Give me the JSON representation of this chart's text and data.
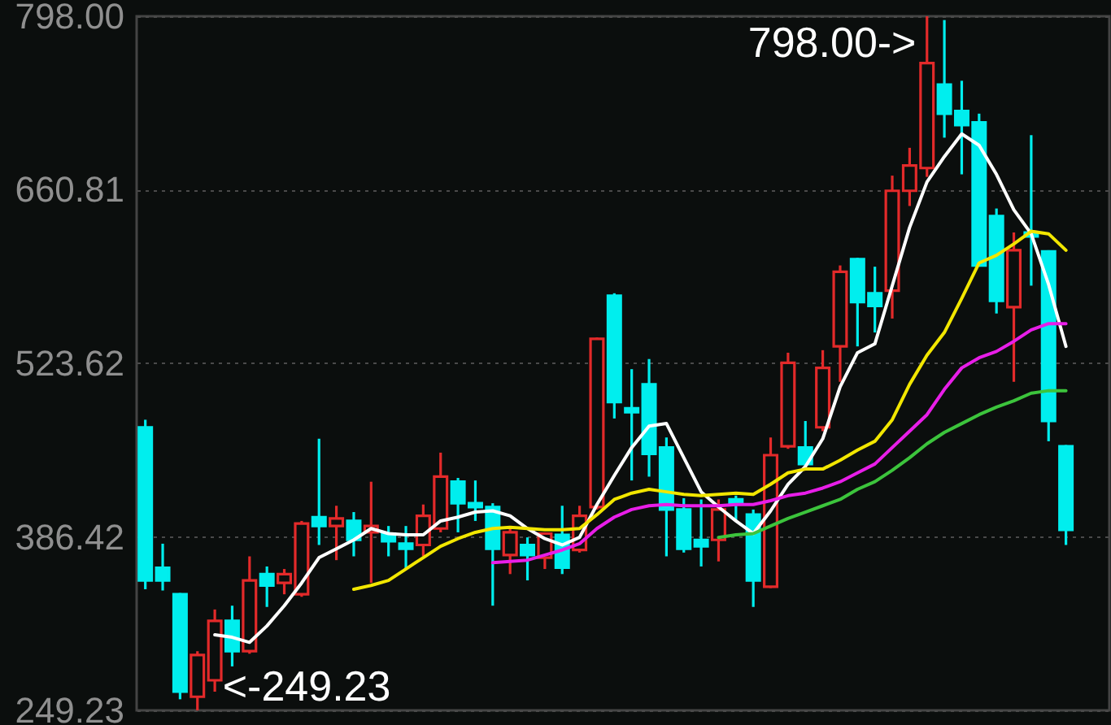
{
  "chart_data": {
    "type": "candlestick",
    "categories": [
      null,
      null,
      null,
      null,
      null,
      null,
      null,
      null,
      null,
      null,
      null,
      null,
      null,
      null,
      null,
      null,
      null,
      null,
      null,
      null,
      null,
      null,
      null,
      null,
      null,
      null,
      null,
      null,
      null,
      null,
      null,
      null,
      null,
      null,
      null,
      null,
      null,
      null,
      null,
      null,
      null,
      null,
      null,
      null,
      null,
      null,
      null,
      null,
      null,
      null,
      null,
      null,
      null,
      null
    ],
    "ohlc": [
      [
        473,
        479,
        345,
        352
      ],
      [
        362,
        381,
        344,
        352
      ],
      [
        341,
        342,
        258,
        264
      ],
      [
        260,
        296,
        249.23,
        293
      ],
      [
        273,
        329,
        264,
        320
      ],
      [
        320,
        332,
        284,
        296
      ],
      [
        296,
        371,
        294,
        352
      ],
      [
        357,
        363,
        331,
        348
      ],
      [
        350,
        361,
        341,
        357
      ],
      [
        341,
        399,
        339,
        397
      ],
      [
        402,
        464,
        380,
        395
      ],
      [
        395,
        411,
        368,
        401
      ],
      [
        399,
        406,
        371,
        384
      ],
      [
        390,
        430,
        350,
        395
      ],
      [
        389,
        395,
        371,
        383
      ],
      [
        381,
        395,
        361,
        377
      ],
      [
        380,
        412,
        371,
        403
      ],
      [
        393,
        453,
        390,
        434
      ],
      [
        430,
        433,
        390,
        413
      ],
      [
        413,
        431,
        399,
        410
      ],
      [
        410,
        413,
        332,
        377
      ],
      [
        372,
        393,
        357,
        390
      ],
      [
        380,
        386,
        352,
        372
      ],
      [
        370,
        390,
        361,
        389
      ],
      [
        388,
        411,
        357,
        362
      ],
      [
        376,
        411,
        374,
        403
      ],
      [
        410,
        544,
        408,
        543
      ],
      [
        577,
        579,
        480,
        493
      ],
      [
        488,
        519,
        431,
        485
      ],
      [
        507,
        527,
        434,
        452
      ],
      [
        457,
        465,
        371,
        408
      ],
      [
        408,
        417,
        374,
        377
      ],
      [
        384,
        416,
        363,
        379
      ],
      [
        384,
        416,
        367,
        408
      ],
      [
        416,
        419,
        399,
        413
      ],
      [
        404,
        408,
        331,
        352
      ],
      [
        347,
        465,
        346,
        451
      ],
      [
        458,
        532,
        456,
        524
      ],
      [
        457,
        478,
        443,
        444
      ],
      [
        473,
        534,
        470,
        520
      ],
      [
        537,
        601,
        509,
        596
      ],
      [
        606,
        607,
        537,
        572
      ],
      [
        579,
        600,
        548,
        569
      ],
      [
        581,
        672,
        559,
        660
      ],
      [
        660,
        694,
        648,
        680
      ],
      [
        678,
        798,
        671,
        761
      ],
      [
        744,
        795,
        702,
        721
      ],
      [
        723,
        747,
        673,
        712
      ],
      [
        714,
        721,
        600,
        601
      ],
      [
        640,
        646,
        563,
        573
      ],
      [
        568,
        627,
        509,
        613
      ],
      [
        627,
        704,
        585,
        624
      ],
      [
        612,
        613,
        462,
        478
      ],
      [
        458,
        459,
        380,
        392
      ]
    ],
    "colors": [
      "#00eeee",
      "#00eeee",
      "#00eeee",
      "#e32a2a",
      "#e32a2a",
      "#00eeee",
      "#e32a2a",
      "#00eeee",
      "#e32a2a",
      "#e32a2a",
      "#00eeee",
      "#e32a2a",
      "#00eeee",
      "#e32a2a",
      "#00eeee",
      "#00eeee",
      "#e32a2a",
      "#e32a2a",
      "#00eeee",
      "#00eeee",
      "#00eeee",
      "#e32a2a",
      "#00eeee",
      "#e32a2a",
      "#00eeee",
      "#e32a2a",
      "#e32a2a",
      "#00eeee",
      "#00eeee",
      "#00eeee",
      "#00eeee",
      "#00eeee",
      "#00eeee",
      "#e32a2a",
      "#00eeee",
      "#00eeee",
      "#e32a2a",
      "#e32a2a",
      "#00eeee",
      "#e32a2a",
      "#e32a2a",
      "#00eeee",
      "#00eeee",
      "#e32a2a",
      "#e32a2a",
      "#e32a2a",
      "#00eeee",
      "#00eeee",
      "#00eeee",
      "#00eeee",
      "#e32a2a",
      "#00eeee",
      "#00eeee",
      "#00eeee"
    ],
    "series": [
      {
        "type": "line",
        "color": "#ffffff",
        "values": [
          null,
          null,
          null,
          null,
          309,
          307,
          303,
          316,
          332,
          350,
          370,
          377,
          384,
          393,
          389,
          388,
          388,
          399,
          402,
          406,
          407,
          403,
          393,
          385,
          380,
          386,
          412,
          435,
          457,
          474,
          476,
          449,
          422,
          410,
          399,
          389,
          407,
          428,
          442,
          464,
          505,
          532,
          539,
          585,
          631,
          667,
          687,
          705,
          696,
          673,
          645,
          626,
          586,
          537
        ]
      },
      {
        "type": "line",
        "color": "#f2e600",
        "values": [
          null,
          null,
          null,
          null,
          null,
          null,
          null,
          null,
          null,
          null,
          null,
          null,
          345,
          348,
          352,
          361,
          370,
          379,
          385,
          390,
          393,
          394,
          393,
          392,
          392,
          393,
          404,
          416,
          421,
          424,
          422,
          420,
          419,
          420,
          421,
          420,
          428,
          437,
          440,
          440,
          447,
          455,
          462,
          479,
          507,
          530,
          548,
          575,
          603,
          609,
          618,
          628,
          626,
          613
        ]
      },
      {
        "type": "line",
        "color": "#e81ee8",
        "values": [
          null,
          null,
          null,
          null,
          null,
          null,
          null,
          null,
          null,
          null,
          null,
          null,
          null,
          null,
          null,
          null,
          null,
          null,
          null,
          null,
          366,
          367,
          368,
          372,
          376,
          381,
          393,
          402,
          408,
          411,
          412,
          411,
          411,
          411,
          412,
          412,
          415,
          419,
          421,
          425,
          430,
          437,
          444,
          457,
          470,
          483,
          503,
          520,
          528,
          533,
          541,
          550,
          555,
          555
        ]
      },
      {
        "type": "line",
        "color": "#3cc43c",
        "values": [
          null,
          null,
          null,
          null,
          null,
          null,
          null,
          null,
          null,
          null,
          null,
          null,
          null,
          null,
          null,
          null,
          null,
          null,
          null,
          null,
          null,
          null,
          null,
          null,
          null,
          null,
          null,
          null,
          null,
          null,
          null,
          null,
          null,
          386,
          388,
          389,
          395,
          401,
          406,
          411,
          416,
          424,
          430,
          439,
          449,
          460,
          469,
          476,
          483,
          489,
          494,
          500,
          502,
          502
        ]
      }
    ],
    "ylim": [
      249.23,
      798
    ],
    "yticks": [
      {
        "value": 798,
        "label": "798.00"
      },
      660.81,
      523.62,
      386.42,
      249.23
    ],
    "grid": "y",
    "tick_labels": "y",
    "annotations": [
      "798.00->",
      "<-249.23"
    ]
  }
}
